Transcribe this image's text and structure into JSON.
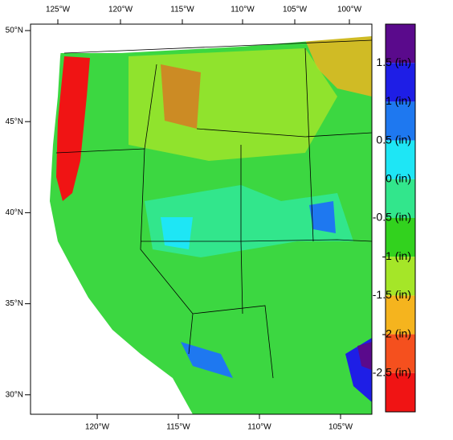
{
  "map": {
    "top_ticks": [
      "125°W",
      "120°W",
      "115°W",
      "110°W",
      "105°W",
      "100°W"
    ],
    "bottom_ticks": [
      "120°W",
      "115°W",
      "110°W",
      "105°W"
    ],
    "left_ticks": [
      "50°N",
      "45°N",
      "40°N",
      "35°N",
      "30°N"
    ]
  },
  "colorbar": {
    "colors": [
      "#5a0a8c",
      "#1e1ee6",
      "#1e78f0",
      "#1ee6f5",
      "#32e68c",
      "#32d21e",
      "#a5e628",
      "#f5b41e",
      "#f5501e",
      "#f01414"
    ],
    "labels": [
      "1.5 (in)",
      "1 (in)",
      "0.5 (in)",
      "0 (in)",
      "-0.5 (in)",
      "-1 (in)",
      "-1.5 (in)",
      "-2 (in)",
      "-2.5 (in)"
    ]
  }
}
